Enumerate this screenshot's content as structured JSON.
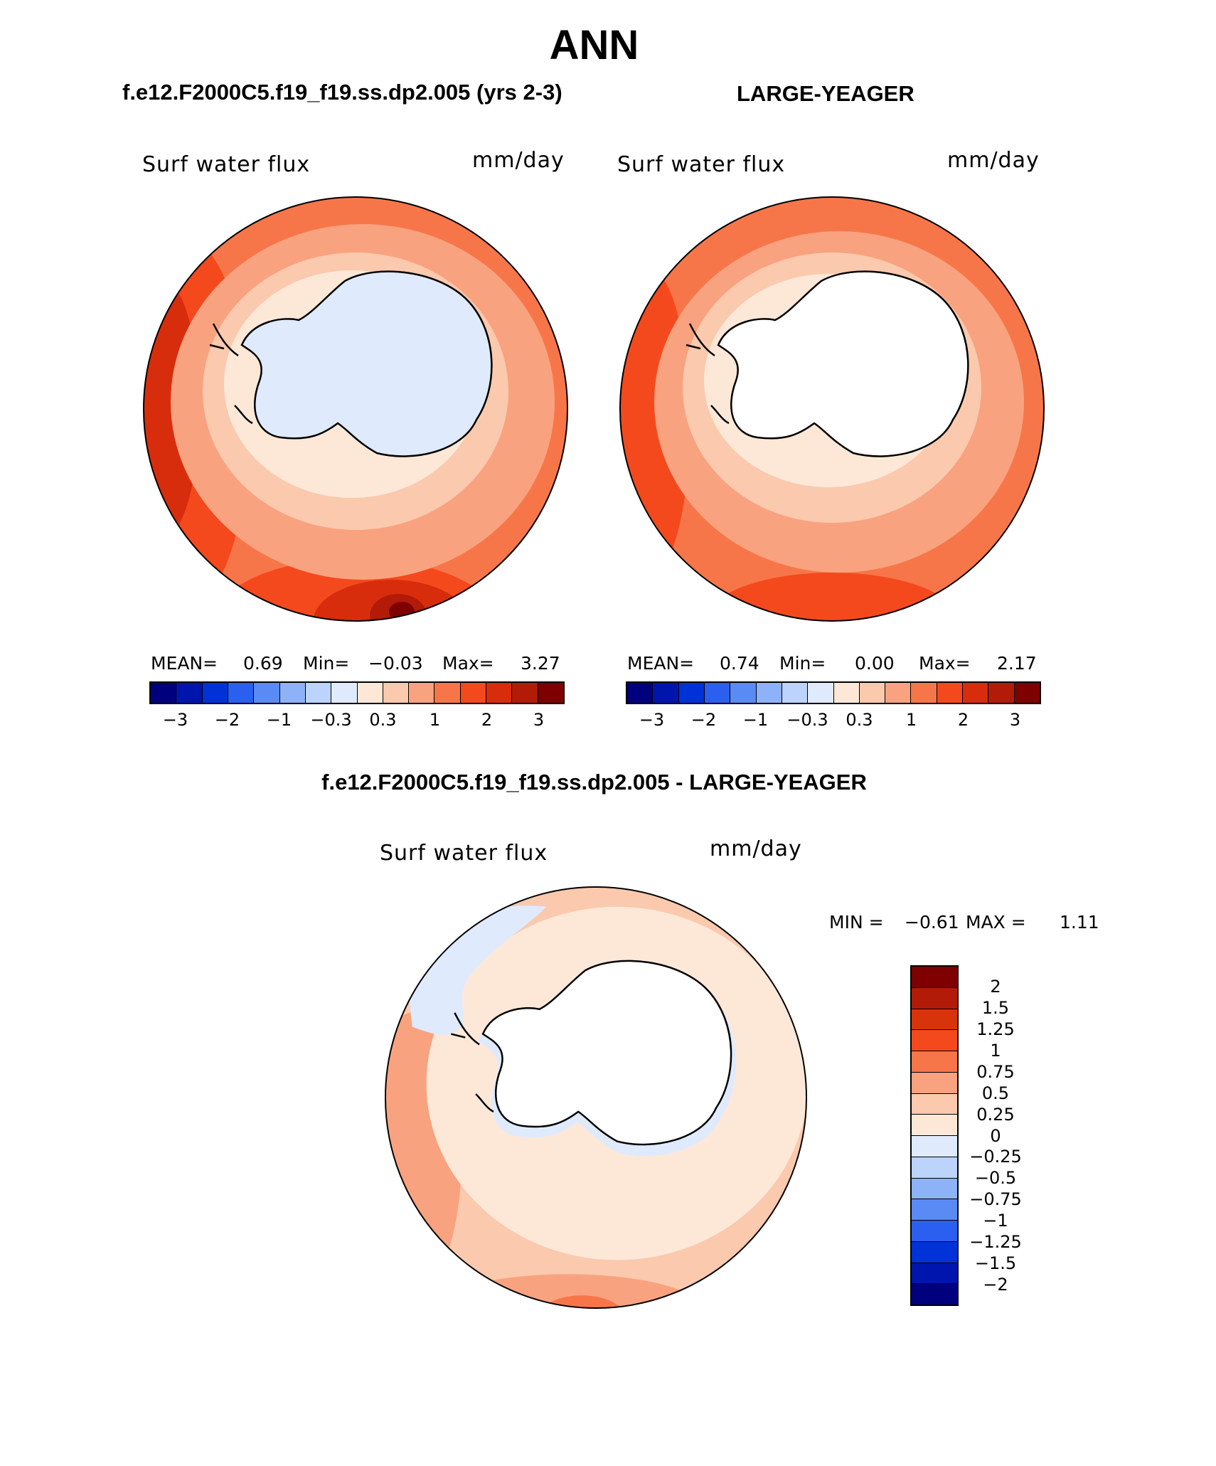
{
  "title": "ANN",
  "left_run": "f.e12.F2000C5.f19_f19.ss.dp2.005 (yrs 2-3)",
  "right_run": "LARGE-YEAGER",
  "diff_title": "f.e12.F2000C5.f19_f19.ss.dp2.005 - LARGE-YEAGER",
  "panels": [
    {
      "variable": "Surf water flux",
      "units": "mm/day",
      "stats": {
        "mean_label": "MEAN=",
        "mean": "0.69",
        "min_label": "Min=",
        "min": "−0.03",
        "max_label": "Max=",
        "max": "3.27"
      }
    },
    {
      "variable": "Surf water flux",
      "units": "mm/day",
      "stats": {
        "mean_label": "MEAN=",
        "mean": "0.74",
        "min_label": "Min=",
        "min": "0.00",
        "max_label": "Max=",
        "max": "2.17"
      }
    }
  ],
  "colorbar_top": {
    "colors": [
      "#00007f",
      "#0015ae",
      "#0032d8",
      "#2a5ff0",
      "#5a8bf5",
      "#8eb2f8",
      "#bcd3fb",
      "#dfeafd",
      "#fde8d8",
      "#fbc9ad",
      "#f9a27f",
      "#f77649",
      "#f4491d",
      "#d82d0c",
      "#b21b07",
      "#7f0000"
    ],
    "ticks": [
      "−3",
      "−2",
      "−1",
      "−0.3",
      "0.3",
      "1",
      "2",
      "3"
    ]
  },
  "diff_panel": {
    "variable": "Surf water flux",
    "units": "mm/day",
    "min_label": "MIN =",
    "min": "−0.61",
    "max_label": "MAX =",
    "max": "1.11"
  },
  "colorbar_diff": {
    "colors": [
      "#7f0000",
      "#b21b07",
      "#d8340c",
      "#f4491d",
      "#f77649",
      "#f9a27f",
      "#fbc9ad",
      "#fde8d8",
      "#dfeafd",
      "#bcd3fb",
      "#8eb2f8",
      "#5a8bf5",
      "#2a5ff0",
      "#0032d8",
      "#0015ae",
      "#00007f"
    ],
    "ticks": [
      "2",
      "1.5",
      "1.25",
      "1",
      "0.75",
      "0.5",
      "0.25",
      "0",
      "−0.25",
      "−0.5",
      "−0.75",
      "−1",
      "−1.25",
      "−1.5",
      "−2"
    ]
  }
}
